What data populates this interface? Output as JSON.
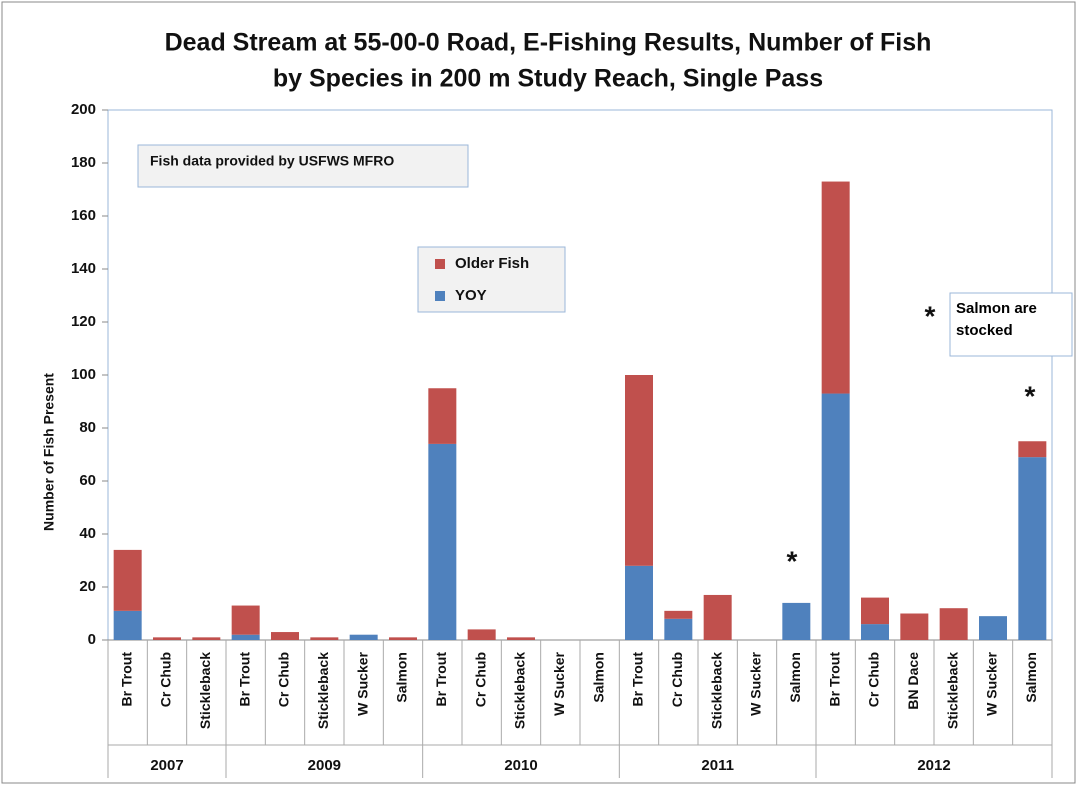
{
  "chart_data": {
    "type": "stacked_bar",
    "title": [
      "Dead Stream at 55-00-0 Road, E-Fishing Results, Number of Fish",
      "by Species in 200 m Study Reach, Single Pass"
    ],
    "y_label": "Number of Fish Present",
    "categories": [
      "Br Trout",
      "Cr Chub",
      "Stickleback",
      "Br Trout",
      "Cr Chub",
      "Stickleback",
      "W Sucker",
      "Salmon",
      "Br Trout",
      "Cr Chub",
      "Stickleback",
      "W Sucker",
      "Salmon",
      "Br Trout",
      "Cr Chub",
      "Stickleback",
      "W Sucker",
      "Salmon",
      "Br Trout",
      "Cr Chub",
      "BN Dace",
      "Stickleback",
      "W Sucker",
      "Salmon"
    ],
    "category_groups": [
      "2007",
      "2007",
      "2007",
      "2009",
      "2009",
      "2009",
      "2009",
      "2009",
      "2010",
      "2010",
      "2010",
      "2010",
      "2010",
      "2011",
      "2011",
      "2011",
      "2011",
      "2011",
      "2012",
      "2012",
      "2012",
      "2012",
      "2012",
      "2012"
    ],
    "series": [
      {
        "name": "YOY",
        "color": "#4f81bd",
        "values": [
          11,
          0,
          0,
          2,
          0,
          0,
          2,
          0,
          74,
          0,
          0,
          0,
          0,
          28,
          8,
          0,
          0,
          14,
          93,
          6,
          0,
          0,
          9,
          69
        ]
      },
      {
        "name": "Older Fish",
        "color": "#c0504d",
        "values": [
          23,
          1,
          1,
          11,
          3,
          1,
          0,
          1,
          21,
          4,
          1,
          0,
          0,
          72,
          3,
          17,
          0,
          0,
          80,
          10,
          10,
          12,
          0,
          6
        ]
      }
    ],
    "ylim": [
      0,
      200
    ],
    "yticks": [
      0,
      20,
      40,
      60,
      80,
      100,
      120,
      140,
      160,
      180,
      200
    ],
    "grid": false,
    "annotations": [
      "Fish data provided by USFWS MFRO",
      "Salmon are stocked",
      "*",
      "*",
      "*"
    ]
  }
}
